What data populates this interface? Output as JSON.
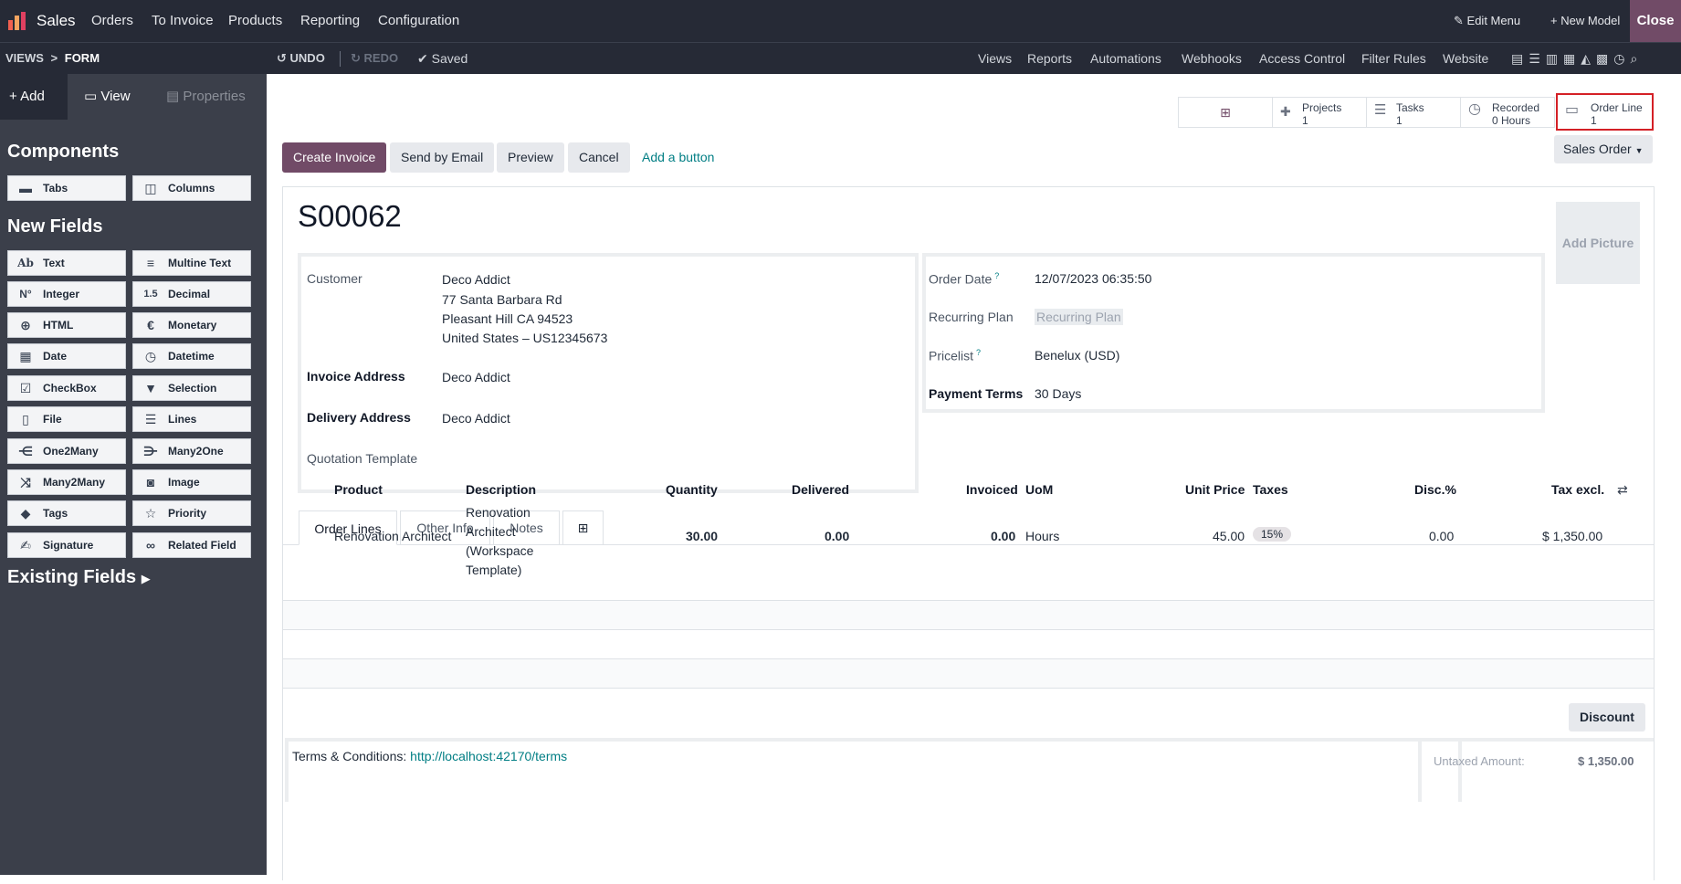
{
  "topbar": {
    "app_name": "Sales",
    "menu": [
      "Orders",
      "To Invoice",
      "Products",
      "Reporting",
      "Configuration"
    ],
    "edit_menu": "Edit Menu",
    "new_model": "New Model",
    "close": "Close"
  },
  "subbar": {
    "breadcrumb_views": "VIEWS",
    "breadcrumb_sep": ">",
    "breadcrumb_form": "FORM",
    "undo": "UNDO",
    "redo": "REDO",
    "saved": "Saved",
    "links": [
      "Views",
      "Reports",
      "Automations",
      "Webhooks",
      "Access Control",
      "Filter Rules",
      "Website"
    ]
  },
  "sidebar": {
    "tabs": [
      "Add",
      "View",
      "Properties"
    ],
    "components_title": "Components",
    "components": [
      "Tabs",
      "Columns"
    ],
    "new_fields_title": "New Fields",
    "fields": [
      "Text",
      "Multine Text",
      "Integer",
      "Decimal",
      "HTML",
      "Monetary",
      "Date",
      "Datetime",
      "CheckBox",
      "Selection",
      "File",
      "Lines",
      "One2Many",
      "Many2One",
      "Many2Many",
      "Image",
      "Tags",
      "Priority",
      "Signature",
      "Related Field"
    ],
    "existing_fields": "Existing Fields"
  },
  "stat_buttons": {
    "projects_label": "Projects",
    "projects_count": "1",
    "tasks_label": "Tasks",
    "tasks_count": "1",
    "recorded_label": "Recorded",
    "recorded_value": "0 Hours",
    "order_line_label": "Order Line",
    "order_line_count": "1"
  },
  "actions": {
    "create_invoice": "Create Invoice",
    "send_by_email": "Send by Email",
    "preview": "Preview",
    "cancel": "Cancel",
    "add_button": "Add a button",
    "sales_order": "Sales Order"
  },
  "form": {
    "name": "S00062",
    "add_picture": "Add Picture",
    "customer_label": "Customer",
    "customer": "Deco Addict",
    "address1": "77 Santa Barbara Rd",
    "address2": "Pleasant Hill CA 94523",
    "address3": "United States – US12345673",
    "invoice_address_label": "Invoice Address",
    "invoice_address": "Deco Addict",
    "delivery_address_label": "Delivery Address",
    "delivery_address": "Deco Addict",
    "quotation_template_label": "Quotation Template",
    "order_date_label": "Order Date",
    "order_date": "12/07/2023 06:35:50",
    "recurring_plan_label": "Recurring Plan",
    "recurring_plan": "Recurring Plan",
    "pricelist_label": "Pricelist",
    "pricelist": "Benelux (USD)",
    "payment_terms_label": "Payment Terms",
    "payment_terms": "30 Days",
    "help_mark": "?"
  },
  "tabs": [
    "Order Lines",
    "Other Info",
    "Notes"
  ],
  "table": {
    "headers": [
      "Product",
      "Description",
      "Quantity",
      "Delivered",
      "Invoiced",
      "UoM",
      "Unit Price",
      "Taxes",
      "Disc.%",
      "Tax excl."
    ],
    "row": {
      "product": "Renovation Architect",
      "description": [
        "Renovation",
        "Architect",
        "(Workspace",
        "Template)"
      ],
      "quantity": "30.00",
      "delivered": "0.00",
      "invoiced": "0.00",
      "uom": "Hours",
      "unit_price": "45.00",
      "taxes": "15%",
      "discount": "0.00",
      "tax_excl": "$ 1,350.00"
    }
  },
  "footer": {
    "discount_button": "Discount",
    "terms_label": "Terms & Conditions:",
    "terms_link": "http://localhost:42170/terms",
    "untaxed_label": "Untaxed Amount:",
    "untaxed_value": "$ 1,350.00"
  }
}
